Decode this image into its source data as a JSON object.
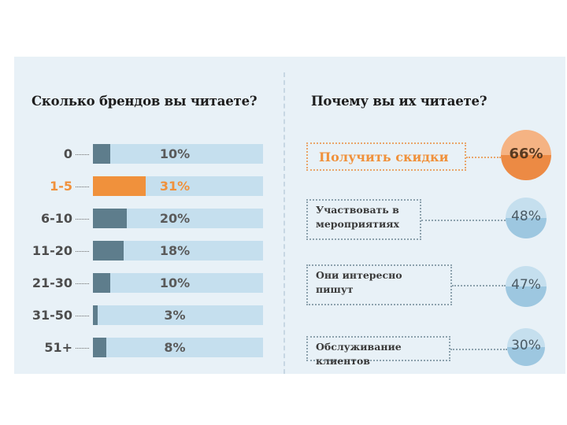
{
  "left": {
    "title": "Сколько брендов вы читаете?"
  },
  "right": {
    "title": "Почему вы их читаете?"
  },
  "colors": {
    "background": "#e8f1f7",
    "track": "#c5dfee",
    "bar": "#5e7d8c",
    "highlight": "#f0913c",
    "circle": "#9dc7e0"
  },
  "chart_data": [
    {
      "type": "bar",
      "orientation": "horizontal",
      "title": "Сколько брендов вы читаете?",
      "categories": [
        "0",
        "1-5",
        "6-10",
        "11-20",
        "21-30",
        "31-50",
        "51+"
      ],
      "values": [
        10,
        31,
        20,
        18,
        10,
        3,
        8
      ],
      "value_labels": [
        "10%",
        "31%",
        "20%",
        "18%",
        "10%",
        "3%",
        "8%"
      ],
      "highlighted_category": "1-5",
      "xlim": [
        0,
        100
      ],
      "unit": "%"
    },
    {
      "type": "bubble-list",
      "title": "Почему вы их читаете?",
      "categories": [
        "Получить скидки",
        "Участвовать в мероприятиях",
        "Они интересно пишут",
        "Обслуживание клиентов"
      ],
      "display_lines": [
        [
          "Получить скидки"
        ],
        [
          "Участвовать в",
          "мероприятиях"
        ],
        [
          "Они интересно",
          "пишут"
        ],
        [
          "Обслуживание клиентов"
        ]
      ],
      "values": [
        66,
        48,
        47,
        30
      ],
      "value_labels": [
        "66%",
        "48%",
        "47%",
        "30%"
      ],
      "highlighted_category": "Получить скидки",
      "unit": "%"
    }
  ]
}
